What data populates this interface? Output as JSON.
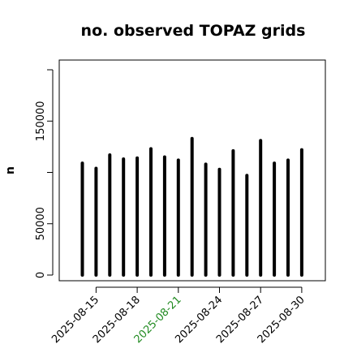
{
  "chart_data": {
    "type": "bar",
    "title": "no. observed TOPAZ grids",
    "xlabel": "",
    "ylabel": "n",
    "ylim": [
      0,
      200000
    ],
    "yticks": [
      0,
      50000,
      150000
    ],
    "grid": false,
    "x": [
      "2025-08-14",
      "2025-08-15",
      "2025-08-16",
      "2025-08-17",
      "2025-08-18",
      "2025-08-19",
      "2025-08-20",
      "2025-08-21",
      "2025-08-22",
      "2025-08-23",
      "2025-08-24",
      "2025-08-25",
      "2025-08-26",
      "2025-08-27",
      "2025-08-28",
      "2025-08-29",
      "2025-08-30"
    ],
    "values": [
      109000,
      104000,
      117000,
      113000,
      114000,
      123000,
      115000,
      112000,
      133000,
      108000,
      103000,
      121000,
      97000,
      131000,
      109000,
      112000,
      122000
    ],
    "xtick_labels": [
      {
        "label": "2025-08-15",
        "index": 1,
        "color": "#000000"
      },
      {
        "label": "2025-08-18",
        "index": 4,
        "color": "#000000"
      },
      {
        "label": "2025-08-21",
        "index": 7,
        "color": "#228B22"
      },
      {
        "label": "2025-08-24",
        "index": 10,
        "color": "#000000"
      },
      {
        "label": "2025-08-27",
        "index": 13,
        "color": "#000000"
      },
      {
        "label": "2025-08-30",
        "index": 16,
        "color": "#000000"
      }
    ],
    "bar_color": "#000000"
  }
}
